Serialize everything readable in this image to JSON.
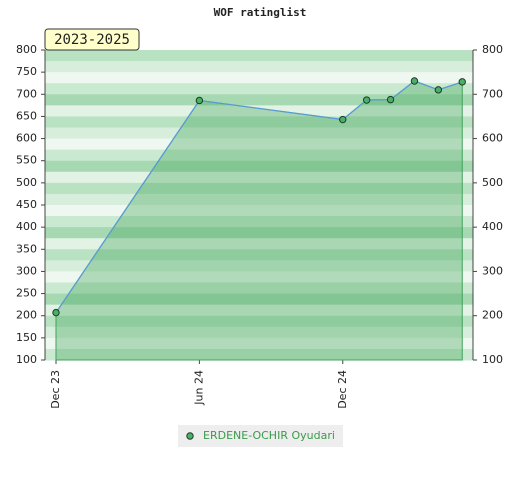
{
  "chart_data": {
    "type": "line",
    "title": "WOF ratinglist",
    "subtitle": "2023-2025",
    "x": [
      0,
      6,
      12,
      13,
      14,
      15,
      16,
      17
    ],
    "xlim": [
      -0.46,
      17.45
    ],
    "xticks": [
      {
        "value": 0,
        "label": "Dec 23"
      },
      {
        "value": 6,
        "label": "Jun 24"
      },
      {
        "value": 12,
        "label": "Dec 24"
      }
    ],
    "series": [
      {
        "name": "ERDENE-OCHIR Oyudari",
        "color": "#5b9bd5",
        "marker_color": "#4caf68",
        "values": [
          207,
          686,
          643,
          687,
          688,
          730,
          710,
          728
        ]
      }
    ],
    "ylim": [
      100,
      800
    ],
    "yticks": [
      100,
      150,
      200,
      250,
      300,
      350,
      400,
      450,
      500,
      550,
      600,
      650,
      700,
      750,
      800
    ],
    "y2lim": [
      100,
      800
    ],
    "y2ticks": [
      100,
      200,
      300,
      400,
      500,
      600,
      700,
      800
    ],
    "legend": "bottom"
  }
}
